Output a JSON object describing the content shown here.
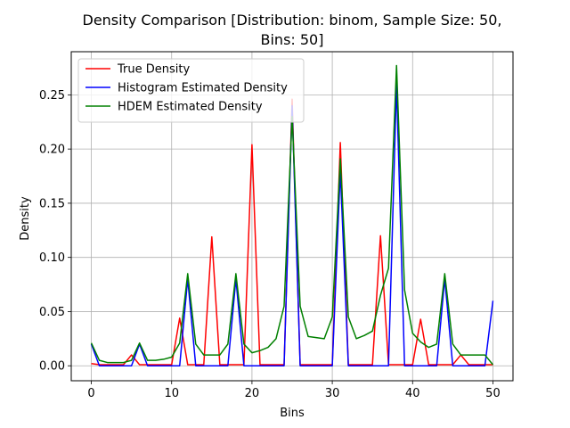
{
  "chart_data": {
    "type": "line",
    "title_lines": [
      "Density Comparison [Distribution: binom, Sample Size: 50,",
      "Bins: 50]"
    ],
    "xlabel": "Bins",
    "ylabel": "Density",
    "xlim": [
      -2.5,
      52.5
    ],
    "ylim": [
      -0.0138,
      0.2898
    ],
    "xticks": [
      0,
      10,
      20,
      30,
      40,
      50
    ],
    "yticks": [
      0.0,
      0.05,
      0.1,
      0.15,
      0.2,
      0.25
    ],
    "ytick_labels": [
      "0.00",
      "0.05",
      "0.10",
      "0.15",
      "0.20",
      "0.25"
    ],
    "grid": true,
    "legend_position": "top-left",
    "series": [
      {
        "name": "True Density",
        "color": "#ff0000",
        "x": [
          0,
          1,
          2,
          3,
          4,
          5,
          6,
          7,
          8,
          9,
          10,
          11,
          12,
          13,
          14,
          15,
          16,
          17,
          18,
          19,
          20,
          21,
          22,
          23,
          24,
          25,
          26,
          27,
          28,
          29,
          30,
          31,
          32,
          33,
          34,
          35,
          36,
          37,
          38,
          39,
          40,
          41,
          42,
          43,
          44,
          45,
          46,
          47,
          48,
          49,
          50
        ],
        "values": [
          0.002,
          0.001,
          0.001,
          0.001,
          0.001,
          0.01,
          0.001,
          0.001,
          0.001,
          0.001,
          0.001,
          0.044,
          0.001,
          0.001,
          0.001,
          0.119,
          0.001,
          0.001,
          0.001,
          0.001,
          0.204,
          0.001,
          0.001,
          0.001,
          0.001,
          0.246,
          0.001,
          0.001,
          0.001,
          0.001,
          0.001,
          0.206,
          0.001,
          0.001,
          0.001,
          0.001,
          0.12,
          0.001,
          0.001,
          0.001,
          0.001,
          0.043,
          0.001,
          0.001,
          0.001,
          0.001,
          0.01,
          0.001,
          0.001,
          0.001,
          0.001
        ]
      },
      {
        "name": "Histogram Estimated Density",
        "color": "#0000ff",
        "x": [
          0,
          1,
          2,
          3,
          4,
          5,
          6,
          7,
          8,
          9,
          10,
          11,
          12,
          13,
          14,
          15,
          16,
          17,
          18,
          19,
          20,
          21,
          22,
          23,
          24,
          25,
          26,
          27,
          28,
          29,
          30,
          31,
          32,
          33,
          34,
          35,
          36,
          37,
          38,
          39,
          40,
          41,
          42,
          43,
          44,
          45,
          46,
          47,
          48,
          49,
          50
        ],
        "values": [
          0.02,
          0,
          0,
          0,
          0,
          0,
          0.02,
          0,
          0,
          0,
          0,
          0,
          0.08,
          0,
          0,
          0,
          0,
          0,
          0.08,
          0,
          0,
          0,
          0,
          0,
          0,
          0.24,
          0,
          0,
          0,
          0,
          0,
          0.18,
          0,
          0,
          0,
          0,
          0,
          0,
          0.26,
          0,
          0,
          0,
          0,
          0,
          0.08,
          0,
          0,
          0,
          0,
          0,
          0.06
        ]
      },
      {
        "name": "HDEM Estimated Density",
        "color": "#008000",
        "x": [
          0,
          1,
          2,
          3,
          4,
          5,
          6,
          7,
          8,
          9,
          10,
          11,
          12,
          13,
          14,
          15,
          16,
          17,
          18,
          19,
          20,
          21,
          22,
          23,
          24,
          25,
          26,
          27,
          28,
          29,
          30,
          31,
          32,
          33,
          34,
          35,
          36,
          37,
          38,
          39,
          40,
          41,
          42,
          43,
          44,
          45,
          46,
          47,
          48,
          49,
          50
        ],
        "values": [
          0.021,
          0.005,
          0.003,
          0.003,
          0.003,
          0.005,
          0.021,
          0.005,
          0.005,
          0.006,
          0.008,
          0.021,
          0.085,
          0.02,
          0.01,
          0.01,
          0.01,
          0.02,
          0.085,
          0.02,
          0.012,
          0.014,
          0.017,
          0.025,
          0.055,
          0.23,
          0.055,
          0.027,
          0.026,
          0.025,
          0.045,
          0.191,
          0.045,
          0.025,
          0.028,
          0.032,
          0.065,
          0.09,
          0.277,
          0.07,
          0.03,
          0.022,
          0.017,
          0.02,
          0.085,
          0.02,
          0.01,
          0.01,
          0.01,
          0.01,
          0.001
        ]
      }
    ]
  }
}
